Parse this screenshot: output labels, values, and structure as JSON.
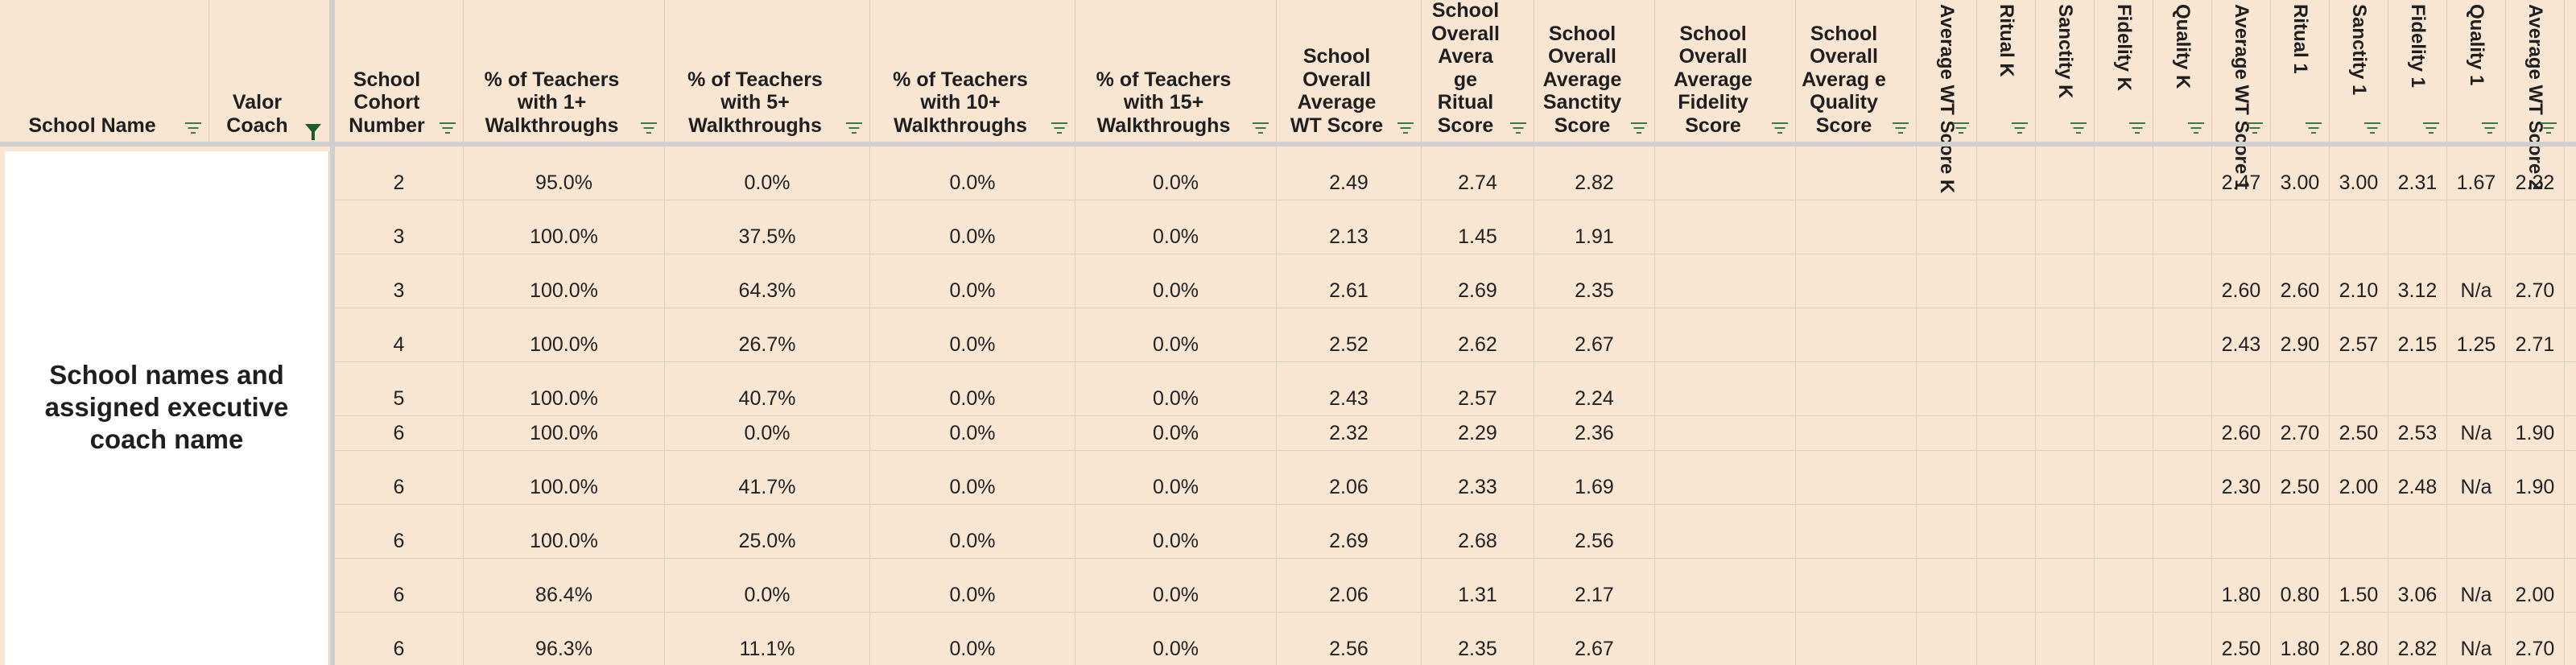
{
  "columns": [
    {
      "key": "school_name",
      "label": "School Name",
      "filter": "normal"
    },
    {
      "key": "coach",
      "label": "Valor Coach",
      "filter": "active"
    },
    {
      "key": "cohort",
      "label": "School Cohort Number",
      "filter": "normal"
    },
    {
      "key": "t1",
      "label": "% of Teachers with 1+ Walkthroughs",
      "filter": "normal"
    },
    {
      "key": "t5",
      "label": "% of Teachers with 5+ Walkthroughs",
      "filter": "normal"
    },
    {
      "key": "t10",
      "label": "% of Teachers with 10+ Walkthroughs",
      "filter": "normal"
    },
    {
      "key": "t15",
      "label": "% of Teachers with 15+ Walkthroughs",
      "filter": "normal"
    },
    {
      "key": "wt",
      "label": "School Overall Average WT Score",
      "filter": "normal"
    },
    {
      "key": "ritual",
      "label": "School Overall Avera ge Ritual Score",
      "filter": "normal"
    },
    {
      "key": "sanctity",
      "label": "School Overall Average Sanctity Score",
      "filter": "normal"
    },
    {
      "key": "fidelity",
      "label": "School Overall Average Fidelity Score",
      "filter": "normal"
    },
    {
      "key": "quality",
      "label": "School Overall Averag e Quality Score",
      "filter": "normal"
    },
    {
      "key": "wtk",
      "label": "Average WT Score K",
      "filter": "normal"
    },
    {
      "key": "ritk",
      "label": "Ritual K",
      "filter": "normal"
    },
    {
      "key": "sank",
      "label": "Sanctity K",
      "filter": "normal"
    },
    {
      "key": "fidk",
      "label": "Fidelity K",
      "filter": "normal"
    },
    {
      "key": "quak",
      "label": "Quality K",
      "filter": "normal"
    },
    {
      "key": "wt1",
      "label": "Average WT Score 1",
      "filter": "normal"
    },
    {
      "key": "rit1",
      "label": "Ritual 1",
      "filter": "normal"
    },
    {
      "key": "san1",
      "label": "Sanctity 1",
      "filter": "normal"
    },
    {
      "key": "fid1",
      "label": "Fidelity 1",
      "filter": "normal"
    },
    {
      "key": "qua1",
      "label": "Quality 1",
      "filter": "normal"
    },
    {
      "key": "wt2",
      "label": "Average WT Score 2",
      "filter": "normal"
    }
  ],
  "overlay_text": "School names and assigned executive coach name",
  "rows": [
    {
      "cohort": "2",
      "t1": "95.0%",
      "t5": "0.0%",
      "t10": "0.0%",
      "t15": "0.0%",
      "wt": "2.49",
      "ritual": "2.74",
      "sanctity": "2.82",
      "wt1": "2.47",
      "rit1": "3.00",
      "san1": "3.00",
      "fid1": "2.31",
      "qua1": "1.67",
      "wt2": "2.22"
    },
    {
      "cohort": "3",
      "t1": "100.0%",
      "t5": "37.5%",
      "t10": "0.0%",
      "t15": "0.0%",
      "wt": "2.13",
      "ritual": "1.45",
      "sanctity": "1.91"
    },
    {
      "cohort": "3",
      "t1": "100.0%",
      "t5": "64.3%",
      "t10": "0.0%",
      "t15": "0.0%",
      "wt": "2.61",
      "ritual": "2.69",
      "sanctity": "2.35",
      "wt1": "2.60",
      "rit1": "2.60",
      "san1": "2.10",
      "fid1": "3.12",
      "qua1": "N/a",
      "wt2": "2.70"
    },
    {
      "cohort": "4",
      "t1": "100.0%",
      "t5": "26.7%",
      "t10": "0.0%",
      "t15": "0.0%",
      "wt": "2.52",
      "ritual": "2.62",
      "sanctity": "2.67",
      "wt1": "2.43",
      "rit1": "2.90",
      "san1": "2.57",
      "fid1": "2.15",
      "qua1": "1.25",
      "wt2": "2.71"
    },
    {
      "cohort": "5",
      "t1": "100.0%",
      "t5": "40.7%",
      "t10": "0.0%",
      "t15": "0.0%",
      "wt": "2.43",
      "ritual": "2.57",
      "sanctity": "2.24"
    },
    {
      "cohort": "6",
      "t1": "100.0%",
      "t5": "0.0%",
      "t10": "0.0%",
      "t15": "0.0%",
      "wt": "2.32",
      "ritual": "2.29",
      "sanctity": "2.36",
      "wt1": "2.60",
      "rit1": "2.70",
      "san1": "2.50",
      "fid1": "2.53",
      "qua1": "N/a",
      "wt2": "1.90"
    },
    {
      "cohort": "6",
      "t1": "100.0%",
      "t5": "41.7%",
      "t10": "0.0%",
      "t15": "0.0%",
      "wt": "2.06",
      "ritual": "2.33",
      "sanctity": "1.69",
      "wt1": "2.30",
      "rit1": "2.50",
      "san1": "2.00",
      "fid1": "2.48",
      "qua1": "N/a",
      "wt2": "1.90"
    },
    {
      "cohort": "6",
      "t1": "100.0%",
      "t5": "25.0%",
      "t10": "0.0%",
      "t15": "0.0%",
      "wt": "2.69",
      "ritual": "2.68",
      "sanctity": "2.56"
    },
    {
      "cohort": "6",
      "t1": "86.4%",
      "t5": "0.0%",
      "t10": "0.0%",
      "t15": "0.0%",
      "wt": "2.06",
      "ritual": "1.31",
      "sanctity": "2.17",
      "wt1": "1.80",
      "rit1": "0.80",
      "san1": "1.50",
      "fid1": "3.06",
      "qua1": "N/a",
      "wt2": "2.00"
    },
    {
      "cohort": "6",
      "t1": "96.3%",
      "t5": "11.1%",
      "t10": "0.0%",
      "t15": "0.0%",
      "wt": "2.56",
      "ritual": "2.35",
      "sanctity": "2.67",
      "wt1": "2.50",
      "rit1": "1.80",
      "san1": "2.80",
      "fid1": "2.82",
      "qua1": "N/a",
      "wt2": "2.70"
    }
  ]
}
